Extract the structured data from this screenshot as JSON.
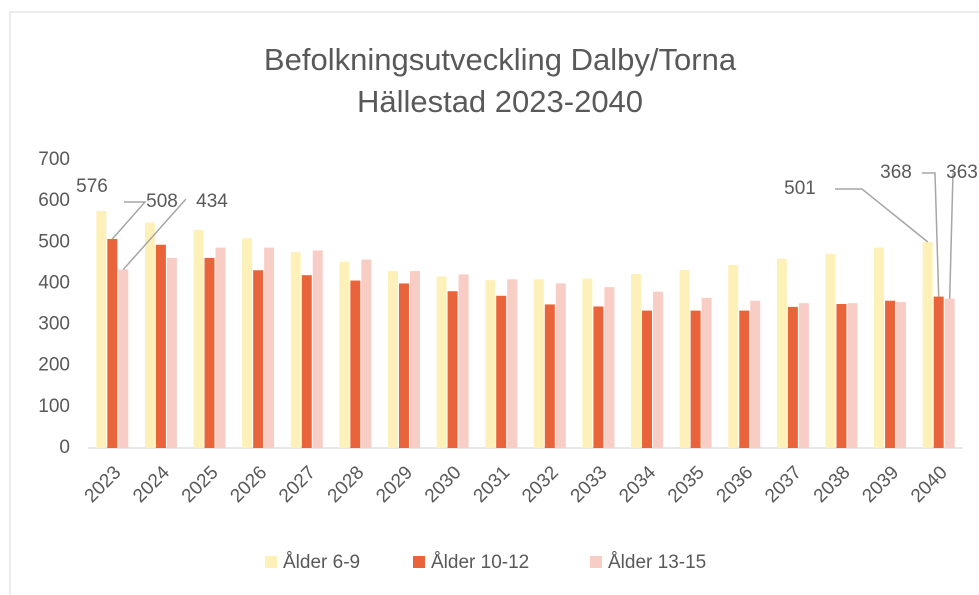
{
  "chart_data": {
    "type": "bar",
    "title": [
      "Befolkningsutveckling Dalby/Torna",
      "Hällestad 2023-2040"
    ],
    "categories": [
      "2023",
      "2024",
      "2025",
      "2026",
      "2027",
      "2028",
      "2029",
      "2030",
      "2031",
      "2032",
      "2033",
      "2034",
      "2035",
      "2036",
      "2037",
      "2038",
      "2039",
      "2040"
    ],
    "series": [
      {
        "name": "Ålder 6-9",
        "color": "#fdf1b9",
        "values": [
          576,
          548,
          530,
          510,
          476,
          453,
          430,
          417,
          408,
          410,
          412,
          423,
          433,
          445,
          460,
          472,
          487,
          501
        ]
      },
      {
        "name": "Ålder 10-12",
        "color": "#e9643a",
        "values": [
          508,
          494,
          462,
          432,
          420,
          407,
          400,
          381,
          370,
          349,
          344,
          334,
          334,
          334,
          343,
          350,
          358,
          368
        ]
      },
      {
        "name": "Ålder 13-15",
        "color": "#f8cdc6",
        "values": [
          434,
          462,
          487,
          487,
          480,
          458,
          430,
          422,
          410,
          400,
          391,
          380,
          365,
          358,
          352,
          352,
          355,
          363
        ]
      }
    ],
    "ylim": [
      0,
      700
    ],
    "yticks": [
      0,
      100,
      200,
      300,
      400,
      500,
      600,
      700
    ],
    "grid": false,
    "legend": "bottom"
  }
}
